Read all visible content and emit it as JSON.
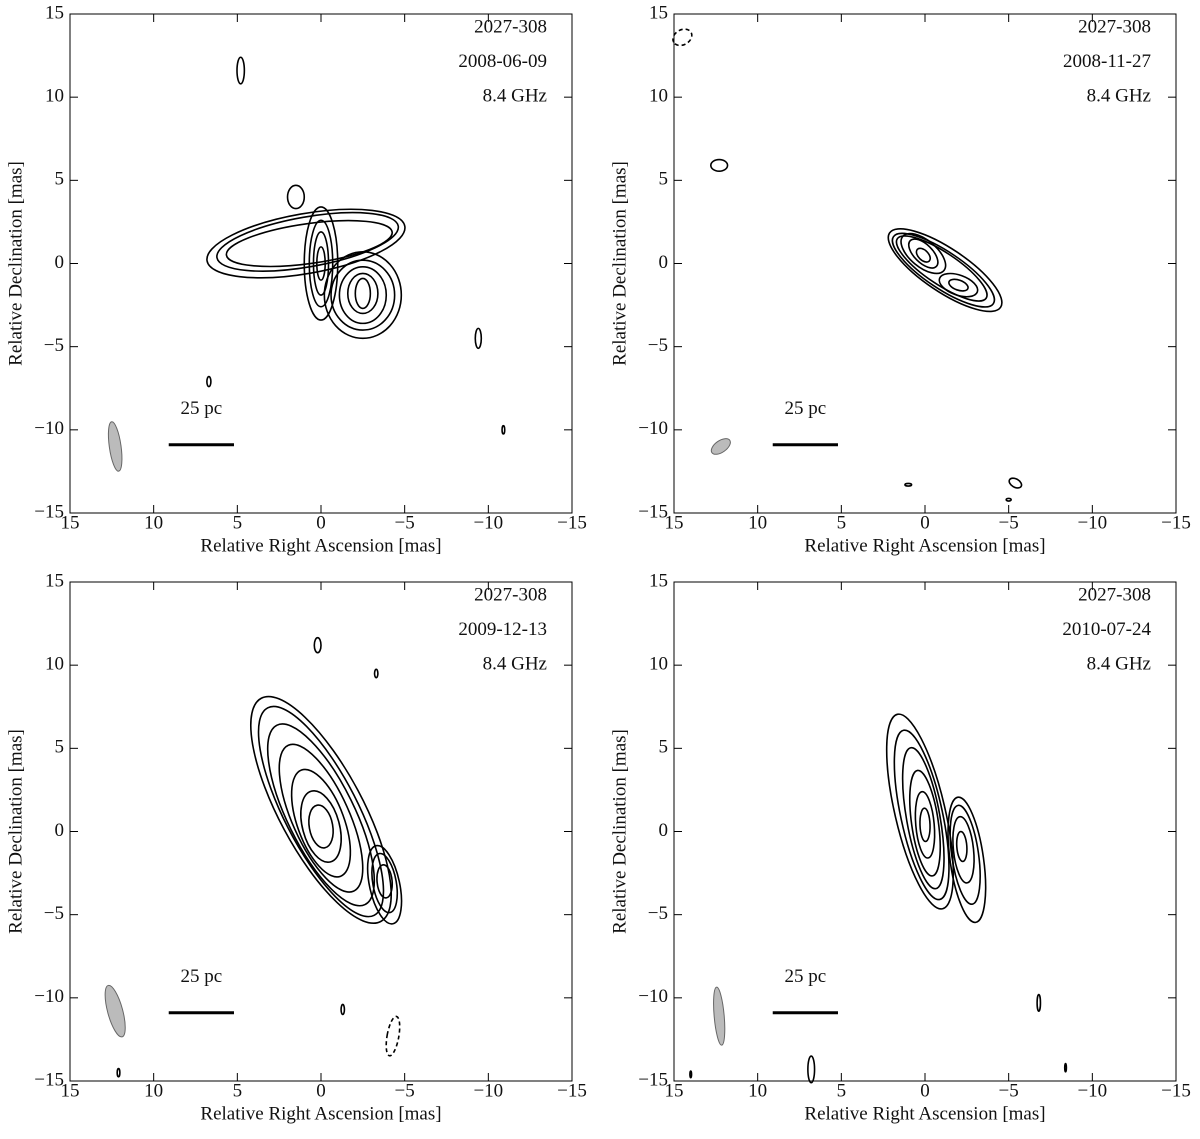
{
  "chart_data": [
    {
      "type": "contour",
      "annotations": [
        "2027-308",
        "2008-06-09",
        "8.4 GHz"
      ],
      "scale_bar_label": "25 pc",
      "xlabel": "Relative Right Ascension [mas]",
      "ylabel": "Relative Declination [mas]",
      "xlim": [
        15,
        -15
      ],
      "ylim": [
        -15,
        15
      ],
      "xticks": [
        15,
        10,
        5,
        0,
        {
          "value": -5,
          "label": "−5"
        },
        {
          "value": -10,
          "label": "−10"
        },
        {
          "value": -15,
          "label": "−15"
        }
      ],
      "yticks": [
        {
          "value": -15,
          "label": "−15"
        },
        {
          "value": -10,
          "label": "−10"
        },
        {
          "value": -5,
          "label": "−5"
        },
        0,
        5,
        10,
        15
      ]
    },
    {
      "type": "contour",
      "annotations": [
        "2027-308",
        "2008-11-27",
        "8.4 GHz"
      ],
      "scale_bar_label": "25 pc",
      "xlabel": "Relative Right Ascension [mas]",
      "ylabel": "Relative Declination [mas]",
      "xlim": [
        15,
        -15
      ],
      "ylim": [
        -15,
        15
      ],
      "xticks": [
        15,
        10,
        5,
        0,
        {
          "value": -5,
          "label": "−5"
        },
        {
          "value": -10,
          "label": "−10"
        },
        {
          "value": -15,
          "label": "−15"
        }
      ],
      "yticks": [
        {
          "value": -15,
          "label": "−15"
        },
        {
          "value": -10,
          "label": "−10"
        },
        {
          "value": -5,
          "label": "−5"
        },
        0,
        5,
        10,
        15
      ]
    },
    {
      "type": "contour",
      "annotations": [
        "2027-308",
        "2009-12-13",
        "8.4 GHz"
      ],
      "scale_bar_label": "25 pc",
      "xlabel": "Relative Right Ascension [mas]",
      "ylabel": "Relative Declination [mas]",
      "xlim": [
        15,
        -15
      ],
      "ylim": [
        -15,
        15
      ],
      "xticks": [
        15,
        10,
        5,
        0,
        {
          "value": -5,
          "label": "−5"
        },
        {
          "value": -10,
          "label": "−10"
        },
        {
          "value": -15,
          "label": "−15"
        }
      ],
      "yticks": [
        {
          "value": -15,
          "label": "−15"
        },
        {
          "value": -10,
          "label": "−10"
        },
        {
          "value": -5,
          "label": "−5"
        },
        0,
        5,
        10,
        15
      ]
    },
    {
      "type": "contour",
      "annotations": [
        "2027-308",
        "2010-07-24",
        "8.4 GHz"
      ],
      "scale_bar_label": "25 pc",
      "xlabel": "Relative Right Ascension [mas]",
      "ylabel": "Relative Declination [mas]",
      "xlim": [
        15,
        -15
      ],
      "ylim": [
        -15,
        15
      ],
      "xticks": [
        15,
        10,
        5,
        0,
        {
          "value": -5,
          "label": "−5"
        },
        {
          "value": -10,
          "label": "−10"
        },
        {
          "value": -15,
          "label": "−15"
        }
      ],
      "yticks": [
        {
          "value": -15,
          "label": "−15"
        },
        {
          "value": -10,
          "label": "−10"
        },
        {
          "value": -5,
          "label": "−5"
        },
        0,
        5,
        10,
        15
      ]
    }
  ]
}
